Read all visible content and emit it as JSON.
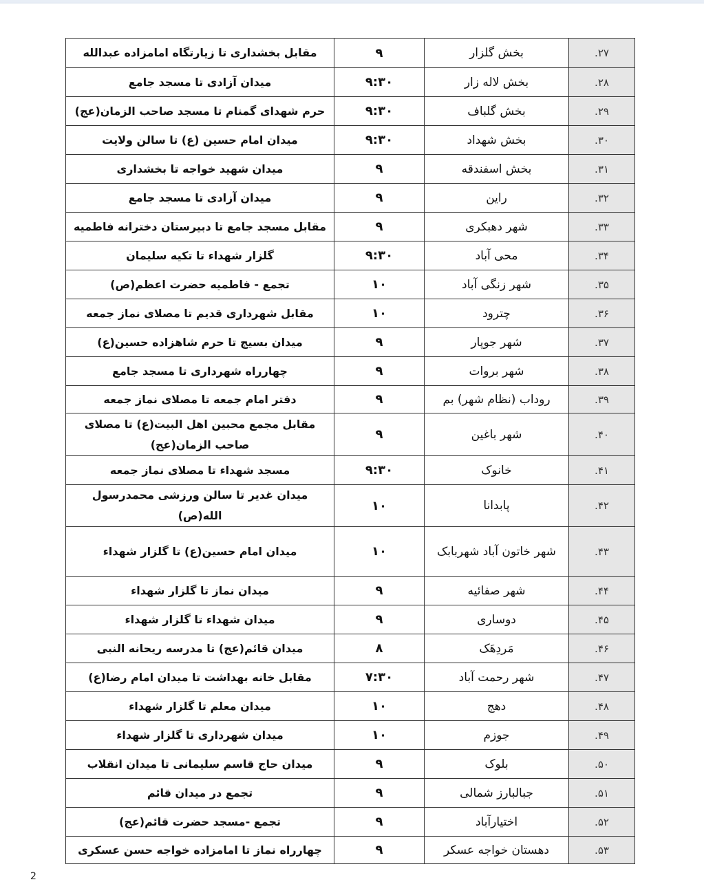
{
  "rows": [
    {
      "num": "۲۷.",
      "place": "بخش گلزار",
      "time": "۹",
      "route": "مقابل بخشداری تا زیارتگاه امامزاده عبدالله"
    },
    {
      "num": "۲۸.",
      "place": "بخش لاله زار",
      "time": "۹:۳۰",
      "route": "میدان آزادی تا مسجد جامع"
    },
    {
      "num": "۲۹.",
      "place": "بخش گلباف",
      "time": "۹:۳۰",
      "route": "حرم شهدای گمنام تا مسجد صاحب الزمان(عج)"
    },
    {
      "num": "۳۰.",
      "place": "بخش شهداد",
      "time": "۹:۳۰",
      "route": "میدان امام حسین (ع) تا سالن ولایت"
    },
    {
      "num": "۳۱.",
      "place": "بخش اسفندقه",
      "time": "۹",
      "route": "میدان شهید خواجه تا بخشداری"
    },
    {
      "num": "۳۲.",
      "place": "راین",
      "time": "۹",
      "route": "میدان آزادی تا مسجد جامع"
    },
    {
      "num": "۳۳.",
      "place": "شهر دهبکری",
      "time": "۹",
      "route": "مقابل مسجد جامع تا دبیرستان دخترانه فاطمیه"
    },
    {
      "num": "۳۴.",
      "place": "محی آباد",
      "time": "۹:۳۰",
      "route": "گلزار شهداء تا تکیه سلیمان"
    },
    {
      "num": "۳۵.",
      "place": "شهر زنگی آباد",
      "time": "۱۰",
      "route": "تجمع - فاطمیه حضرت اعظم(ص)"
    },
    {
      "num": "۳۶.",
      "place": "چترود",
      "time": "۱۰",
      "route": "مقابل شهرداری قدیم تا مصلای نماز جمعه"
    },
    {
      "num": "۳۷.",
      "place": "شهر جوپار",
      "time": "۹",
      "route": "میدان بسیج تا حرم شاهزاده حسین(ع)"
    },
    {
      "num": "۳۸.",
      "place": "شهر بروات",
      "time": "۹",
      "route": "چهارراه شهرداری تا مسجد جامع"
    },
    {
      "num": "۳۹.",
      "place": "روداب (نظام شهر) بم",
      "time": "۹",
      "route": "دفتر امام جمعه تا مصلای نماز جمعه"
    },
    {
      "num": "۴۰.",
      "place": "شهر باغین",
      "time": "۹",
      "route": "مقابل مجمع محبین اهل البیت(ع) تا مصلای صاحب الزمان(عج)"
    },
    {
      "num": "۴۱.",
      "place": "خانوک",
      "time": "۹:۳۰",
      "route": "مسجد شهداء تا مصلای نماز جمعه"
    },
    {
      "num": "۴۲.",
      "place": "پابدانا",
      "time": "۱۰",
      "route": "میدان غدیر تا سالن ورزشی محمدرسول الله(ص)"
    },
    {
      "num": "۴۳.",
      "place": "شهر خاتون آباد شهربابک",
      "time": "۱۰",
      "route": "میدان امام حسین(ع) تا گلزار شهداء"
    },
    {
      "num": "۴۴.",
      "place": "شهر صفائیه",
      "time": "۹",
      "route": "میدان نماز تا گلزار شهداء"
    },
    {
      "num": "۴۵.",
      "place": "دوساری",
      "time": "۹",
      "route": "میدان شهداء تا گلزار شهداء"
    },
    {
      "num": "۴۶.",
      "place": "مَردِهَک",
      "time": "۸",
      "route": "میدان قائم(عج) تا مدرسه ریحانه النبی"
    },
    {
      "num": "۴۷.",
      "place": "شهر رحمت آباد",
      "time": "۷:۳۰",
      "route": "مقابل خانه بهداشت تا میدان امام رضا(ع)"
    },
    {
      "num": "۴۸.",
      "place": "دهج",
      "time": "۱۰",
      "route": "میدان معلم تا گلزار شهداء"
    },
    {
      "num": "۴۹.",
      "place": "جوزم",
      "time": "۱۰",
      "route": "میدان شهرداری تا گلزار شهداء"
    },
    {
      "num": "۵۰.",
      "place": "بلوک",
      "time": "۹",
      "route": "میدان حاج قاسم سلیمانی تا میدان انقلاب"
    },
    {
      "num": "۵۱.",
      "place": "جبالبارز شمالی",
      "time": "۹",
      "route": "تجمع در میدان قائم"
    },
    {
      "num": "۵۲.",
      "place": "اختیارآباد",
      "time": "۹",
      "route": "تجمع -مسجد حضرت قائم(عج)"
    },
    {
      "num": "۵۳.",
      "place": "دهستان خواجه عسکر",
      "time": "۹",
      "route": "چهارراه نماز تا امامزاده خواجه حسن عسکری"
    }
  ],
  "page_number": "2"
}
